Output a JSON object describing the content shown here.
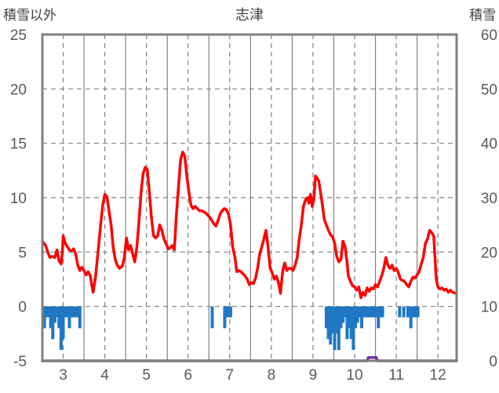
{
  "chart_data": {
    "type": "line",
    "title": "志津",
    "left_axis_label": "積雪以外",
    "right_axis_label": "積雪",
    "left_axis": {
      "min": -5,
      "max": 25,
      "ticks": [
        -5,
        0,
        5,
        10,
        15,
        20,
        25
      ]
    },
    "right_axis": {
      "min": 0,
      "max": 60,
      "ticks": [
        0,
        10,
        20,
        30,
        40,
        50,
        60
      ]
    },
    "x_axis": {
      "min": 2.5,
      "max": 12.45,
      "tick_labels": [
        "3",
        "4",
        "5",
        "6",
        "7",
        "8",
        "9",
        "10",
        "11",
        "12"
      ],
      "ticks": [
        3,
        4,
        5,
        6,
        7,
        8,
        9,
        10,
        11,
        12
      ]
    },
    "grid": {
      "vertical_solid_at": [
        3.5,
        4.5,
        5.5,
        6.5,
        7.5,
        8.5,
        9.5,
        10.5,
        11.5
      ],
      "vertical_dashed_at": [
        3,
        4,
        5,
        6,
        7,
        8,
        9,
        10,
        11,
        12
      ],
      "horizontal_dashed": true
    },
    "colors": {
      "temperature": "#ff0000",
      "precipitation": "#1f77c4",
      "snow": "#7030a0",
      "grid": "#808080",
      "frame": "#808080"
    },
    "series": [
      {
        "name": "",
        "axis": "left",
        "kind": "line",
        "color": "#ff0000",
        "points": [
          [
            2.5,
            6.0
          ],
          [
            2.58,
            5.6
          ],
          [
            2.63,
            5.0
          ],
          [
            2.68,
            4.5
          ],
          [
            2.73,
            4.6
          ],
          [
            2.8,
            4.5
          ],
          [
            2.85,
            5.2
          ],
          [
            2.9,
            4.2
          ],
          [
            2.95,
            3.9
          ],
          [
            2.98,
            5.0
          ],
          [
            3.0,
            6.5
          ],
          [
            3.05,
            5.8
          ],
          [
            3.1,
            5.5
          ],
          [
            3.15,
            5.2
          ],
          [
            3.2,
            5.1
          ],
          [
            3.25,
            5.3
          ],
          [
            3.3,
            4.8
          ],
          [
            3.35,
            3.8
          ],
          [
            3.4,
            3.3
          ],
          [
            3.45,
            3.6
          ],
          [
            3.5,
            3.3
          ],
          [
            3.55,
            2.9
          ],
          [
            3.6,
            3.2
          ],
          [
            3.65,
            2.8
          ],
          [
            3.72,
            1.3
          ],
          [
            3.78,
            2.8
          ],
          [
            3.85,
            5.5
          ],
          [
            3.9,
            7.5
          ],
          [
            3.95,
            9.3
          ],
          [
            4.0,
            10.3
          ],
          [
            4.05,
            10.1
          ],
          [
            4.1,
            8.8
          ],
          [
            4.15,
            7.5
          ],
          [
            4.2,
            5.5
          ],
          [
            4.25,
            4.3
          ],
          [
            4.3,
            3.8
          ],
          [
            4.35,
            3.5
          ],
          [
            4.42,
            3.7
          ],
          [
            4.47,
            4.5
          ],
          [
            4.52,
            6.3
          ],
          [
            4.57,
            5.2
          ],
          [
            4.62,
            5.6
          ],
          [
            4.67,
            4.8
          ],
          [
            4.72,
            4.1
          ],
          [
            4.77,
            5.5
          ],
          [
            4.82,
            7.8
          ],
          [
            4.87,
            10.5
          ],
          [
            4.92,
            12.2
          ],
          [
            4.97,
            12.8
          ],
          [
            5.02,
            12.6
          ],
          [
            5.07,
            10.5
          ],
          [
            5.12,
            8.2
          ],
          [
            5.17,
            6.5
          ],
          [
            5.22,
            6.3
          ],
          [
            5.27,
            6.5
          ],
          [
            5.32,
            7.5
          ],
          [
            5.37,
            7.0
          ],
          [
            5.42,
            6.2
          ],
          [
            5.47,
            5.8
          ],
          [
            5.52,
            5.3
          ],
          [
            5.57,
            5.4
          ],
          [
            5.62,
            5.6
          ],
          [
            5.67,
            5.2
          ],
          [
            5.72,
            8.5
          ],
          [
            5.77,
            11.0
          ],
          [
            5.82,
            13.5
          ],
          [
            5.87,
            14.2
          ],
          [
            5.92,
            13.8
          ],
          [
            5.97,
            12.0
          ],
          [
            6.02,
            10.5
          ],
          [
            6.07,
            9.3
          ],
          [
            6.12,
            9.0
          ],
          [
            6.17,
            9.2
          ],
          [
            6.22,
            9.0
          ],
          [
            6.27,
            8.8
          ],
          [
            6.32,
            8.8
          ],
          [
            6.37,
            8.7
          ],
          [
            6.42,
            8.6
          ],
          [
            6.47,
            8.4
          ],
          [
            6.52,
            8.2
          ],
          [
            6.57,
            7.9
          ],
          [
            6.62,
            7.6
          ],
          [
            6.67,
            7.4
          ],
          [
            6.72,
            7.9
          ],
          [
            6.77,
            8.5
          ],
          [
            6.82,
            8.8
          ],
          [
            6.87,
            9.0
          ],
          [
            6.92,
            8.9
          ],
          [
            6.97,
            8.5
          ],
          [
            7.02,
            7.5
          ],
          [
            7.07,
            5.5
          ],
          [
            7.12,
            4.6
          ],
          [
            7.17,
            3.2
          ],
          [
            7.22,
            3.3
          ],
          [
            7.27,
            3.2
          ],
          [
            7.32,
            3.0
          ],
          [
            7.37,
            2.8
          ],
          [
            7.42,
            2.5
          ],
          [
            7.47,
            2.0
          ],
          [
            7.52,
            2.2
          ],
          [
            7.57,
            2.1
          ],
          [
            7.62,
            2.6
          ],
          [
            7.67,
            3.5
          ],
          [
            7.72,
            4.8
          ],
          [
            7.77,
            5.5
          ],
          [
            7.82,
            6.2
          ],
          [
            7.87,
            7.0
          ],
          [
            7.92,
            5.5
          ],
          [
            7.97,
            3.5
          ],
          [
            8.02,
            3.1
          ],
          [
            8.07,
            2.5
          ],
          [
            8.12,
            2.8
          ],
          [
            8.17,
            2.2
          ],
          [
            8.22,
            1.2
          ],
          [
            8.27,
            3.2
          ],
          [
            8.32,
            4.0
          ],
          [
            8.37,
            3.3
          ],
          [
            8.42,
            3.5
          ],
          [
            8.47,
            3.5
          ],
          [
            8.52,
            3.3
          ],
          [
            8.57,
            3.8
          ],
          [
            8.62,
            4.5
          ],
          [
            8.67,
            6.2
          ],
          [
            8.72,
            7.5
          ],
          [
            8.77,
            9.2
          ],
          [
            8.82,
            9.8
          ],
          [
            8.87,
            10.0
          ],
          [
            8.9,
            9.5
          ],
          [
            8.94,
            10.3
          ],
          [
            8.98,
            9.2
          ],
          [
            9.02,
            9.8
          ],
          [
            9.06,
            12.0
          ],
          [
            9.1,
            11.8
          ],
          [
            9.14,
            11.5
          ],
          [
            9.18,
            10.5
          ],
          [
            9.22,
            9.5
          ],
          [
            9.27,
            8.0
          ],
          [
            9.32,
            7.5
          ],
          [
            9.37,
            7.0
          ],
          [
            9.42,
            6.6
          ],
          [
            9.47,
            6.4
          ],
          [
            9.52,
            5.8
          ],
          [
            9.57,
            4.6
          ],
          [
            9.62,
            4.1
          ],
          [
            9.67,
            4.3
          ],
          [
            9.72,
            6.0
          ],
          [
            9.77,
            5.5
          ],
          [
            9.82,
            4.0
          ],
          [
            9.85,
            2.8
          ],
          [
            9.9,
            2.3
          ],
          [
            9.95,
            1.9
          ],
          [
            10.0,
            1.8
          ],
          [
            10.05,
            1.5
          ],
          [
            10.1,
            1.8
          ],
          [
            10.15,
            0.8
          ],
          [
            10.2,
            1.3
          ],
          [
            10.25,
            1.0
          ],
          [
            10.3,
            1.7
          ],
          [
            10.35,
            1.4
          ],
          [
            10.4,
            1.7
          ],
          [
            10.45,
            1.6
          ],
          [
            10.5,
            2.0
          ],
          [
            10.55,
            1.8
          ],
          [
            10.6,
            2.3
          ],
          [
            10.65,
            2.8
          ],
          [
            10.7,
            3.5
          ],
          [
            10.75,
            4.5
          ],
          [
            10.8,
            3.8
          ],
          [
            10.85,
            3.5
          ],
          [
            10.9,
            3.8
          ],
          [
            10.95,
            3.3
          ],
          [
            11.0,
            3.5
          ],
          [
            11.05,
            3.1
          ],
          [
            11.1,
            2.5
          ],
          [
            11.15,
            2.4
          ],
          [
            11.2,
            2.3
          ],
          [
            11.25,
            2.0
          ],
          [
            11.3,
            1.8
          ],
          [
            11.35,
            2.3
          ],
          [
            11.4,
            2.7
          ],
          [
            11.45,
            2.6
          ],
          [
            11.5,
            2.9
          ],
          [
            11.55,
            3.2
          ],
          [
            11.6,
            3.9
          ],
          [
            11.65,
            4.5
          ],
          [
            11.7,
            5.8
          ],
          [
            11.75,
            6.2
          ],
          [
            11.8,
            7.0
          ],
          [
            11.85,
            6.8
          ],
          [
            11.9,
            6.5
          ],
          [
            11.93,
            4.5
          ],
          [
            11.96,
            2.5
          ],
          [
            12.0,
            1.8
          ],
          [
            12.05,
            1.6
          ],
          [
            12.1,
            1.7
          ],
          [
            12.15,
            1.5
          ],
          [
            12.2,
            1.6
          ],
          [
            12.25,
            1.3
          ],
          [
            12.3,
            1.5
          ],
          [
            12.35,
            1.3
          ],
          [
            12.45,
            1.2
          ]
        ]
      },
      {
        "name": "",
        "axis": "left",
        "kind": "bar_down",
        "color": "#1f77c4",
        "bars": [
          [
            2.55,
            -2.0
          ],
          [
            2.6,
            -1.0
          ],
          [
            2.65,
            -1.0
          ],
          [
            2.7,
            -2.0
          ],
          [
            2.75,
            -3.0
          ],
          [
            2.8,
            -1.5
          ],
          [
            2.85,
            -1.0
          ],
          [
            2.9,
            -2.0
          ],
          [
            2.95,
            -4.0
          ],
          [
            3.0,
            -3.0
          ],
          [
            3.05,
            -1.0
          ],
          [
            3.1,
            -1.0
          ],
          [
            3.15,
            -2.0
          ],
          [
            3.2,
            -1.0
          ],
          [
            3.25,
            -1.0
          ],
          [
            3.3,
            -1.0
          ],
          [
            3.35,
            -1.0
          ],
          [
            3.4,
            -2.0
          ],
          [
            6.58,
            -2.0
          ],
          [
            6.88,
            -2.0
          ],
          [
            6.95,
            -1.0
          ],
          [
            7.02,
            -1.0
          ],
          [
            9.32,
            -2.0
          ],
          [
            9.37,
            -3.0
          ],
          [
            9.42,
            -3.5
          ],
          [
            9.47,
            -2.5
          ],
          [
            9.52,
            -4.0
          ],
          [
            9.57,
            -2.5
          ],
          [
            9.62,
            -4.0
          ],
          [
            9.67,
            -2.0
          ],
          [
            9.72,
            -1.5
          ],
          [
            9.77,
            -1.0
          ],
          [
            9.82,
            -3.0
          ],
          [
            9.87,
            -2.0
          ],
          [
            9.92,
            -3.0
          ],
          [
            9.97,
            -4.0
          ],
          [
            10.02,
            -2.0
          ],
          [
            10.07,
            -1.5
          ],
          [
            10.12,
            -1.0
          ],
          [
            10.17,
            -2.0
          ],
          [
            10.22,
            -1.0
          ],
          [
            10.27,
            -1.0
          ],
          [
            10.32,
            -1.0
          ],
          [
            10.37,
            -1.0
          ],
          [
            10.42,
            -1.0
          ],
          [
            10.47,
            -1.0
          ],
          [
            10.52,
            -1.0
          ],
          [
            10.57,
            -2.0
          ],
          [
            10.62,
            -1.0
          ],
          [
            10.67,
            -1.0
          ],
          [
            11.08,
            -1.0
          ],
          [
            11.18,
            -1.0
          ],
          [
            11.28,
            -1.0
          ],
          [
            11.35,
            -2.0
          ],
          [
            11.42,
            -1.0
          ],
          [
            11.47,
            -1.0
          ],
          [
            11.52,
            -1.0
          ]
        ]
      },
      {
        "name": "",
        "axis": "right",
        "kind": "line",
        "color": "#7030a0",
        "points": [
          [
            2.5,
            0
          ],
          [
            10.3,
            0
          ],
          [
            10.33,
            0.6
          ],
          [
            10.52,
            0.6
          ],
          [
            10.55,
            0
          ],
          [
            12.45,
            0
          ]
        ]
      }
    ]
  }
}
